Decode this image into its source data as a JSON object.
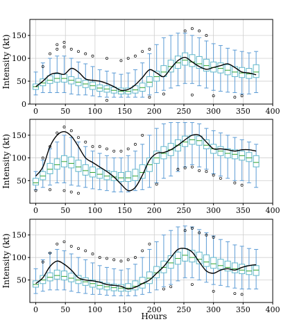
{
  "figure": {
    "xlabel": "Hours"
  },
  "colors": {
    "whisker": "#5b9bd5",
    "box_edge": "#5fb7c9",
    "median": "#2ca02c",
    "mean_line": "#000000",
    "grid": "#c8c8c8",
    "outlier": "#000000"
  },
  "chart_data": [
    {
      "type": "box",
      "ylabel": "Intensity (kt)",
      "xlim": [
        -10,
        400
      ],
      "ylim": [
        0,
        185
      ],
      "xticks": [
        0,
        50,
        100,
        150,
        200,
        250,
        300,
        350,
        400
      ],
      "yticks": [
        0,
        50,
        100,
        150
      ],
      "grid": true,
      "positions": [
        0,
        12,
        24,
        36,
        48,
        60,
        72,
        84,
        96,
        108,
        120,
        132,
        144,
        156,
        168,
        180,
        192,
        204,
        216,
        228,
        240,
        252,
        264,
        276,
        288,
        300,
        312,
        324,
        336,
        348,
        360,
        372
      ],
      "q1": [
        32,
        40,
        45,
        48,
        48,
        44,
        40,
        36,
        32,
        28,
        26,
        24,
        22,
        22,
        24,
        28,
        38,
        50,
        60,
        70,
        78,
        85,
        82,
        78,
        72,
        70,
        68,
        64,
        60,
        58,
        56,
        58
      ],
      "median": [
        38,
        46,
        52,
        56,
        56,
        52,
        48,
        44,
        40,
        35,
        33,
        30,
        28,
        28,
        31,
        36,
        48,
        60,
        70,
        82,
        90,
        96,
        92,
        88,
        84,
        80,
        78,
        74,
        70,
        68,
        66,
        70
      ],
      "q3": [
        44,
        55,
        62,
        66,
        65,
        60,
        56,
        52,
        48,
        42,
        40,
        37,
        35,
        35,
        40,
        46,
        60,
        72,
        84,
        96,
        105,
        112,
        108,
        104,
        98,
        92,
        90,
        86,
        82,
        80,
        78,
        86
      ],
      "whisker_low": [
        20,
        25,
        25,
        25,
        25,
        22,
        20,
        20,
        18,
        16,
        15,
        15,
        15,
        15,
        15,
        15,
        20,
        25,
        30,
        35,
        40,
        45,
        45,
        40,
        35,
        30,
        28,
        26,
        25,
        22,
        22,
        25
      ],
      "whisker_high": [
        70,
        90,
        100,
        105,
        105,
        100,
        92,
        88,
        82,
        75,
        72,
        68,
        65,
        68,
        75,
        90,
        110,
        130,
        145,
        150,
        155,
        155,
        150,
        145,
        138,
        132,
        128,
        122,
        118,
        115,
        112,
        115
      ],
      "outliers": [
        [
          12,
          82
        ],
        [
          24,
          110
        ],
        [
          36,
          120
        ],
        [
          36,
          130
        ],
        [
          48,
          125
        ],
        [
          48,
          135
        ],
        [
          60,
          120
        ],
        [
          72,
          115
        ],
        [
          84,
          110
        ],
        [
          96,
          105
        ],
        [
          120,
          100
        ],
        [
          144,
          95
        ],
        [
          156,
          100
        ],
        [
          168,
          105
        ],
        [
          180,
          115
        ],
        [
          192,
          120
        ],
        [
          252,
          160
        ],
        [
          264,
          165
        ],
        [
          276,
          160
        ],
        [
          288,
          150
        ],
        [
          192,
          15
        ],
        [
          216,
          22
        ],
        [
          264,
          20
        ],
        [
          300,
          18
        ],
        [
          336,
          15
        ],
        [
          348,
          18
        ],
        [
          120,
          8
        ]
      ],
      "mean_line": {
        "x": [
          0,
          12,
          24,
          36,
          48,
          60,
          72,
          84,
          96,
          108,
          120,
          132,
          144,
          156,
          168,
          180,
          192,
          204,
          216,
          228,
          240,
          252,
          264,
          276,
          288,
          300,
          312,
          324,
          336,
          348,
          360,
          372
        ],
        "y": [
          38,
          50,
          64,
          68,
          65,
          78,
          70,
          55,
          52,
          50,
          45,
          38,
          30,
          32,
          42,
          58,
          75,
          68,
          60,
          78,
          95,
          102,
          92,
          82,
          76,
          80,
          84,
          88,
          80,
          70,
          68,
          64
        ]
      }
    },
    {
      "type": "box",
      "ylabel": "Intensity (kt)",
      "xlim": [
        -10,
        400
      ],
      "ylim": [
        0,
        185
      ],
      "xticks": [
        0,
        50,
        100,
        150,
        200,
        250,
        300,
        350,
        400
      ],
      "yticks": [
        50,
        100,
        150
      ],
      "grid": true,
      "positions": [
        0,
        12,
        24,
        36,
        48,
        60,
        72,
        84,
        96,
        108,
        120,
        132,
        144,
        156,
        168,
        180,
        192,
        204,
        216,
        228,
        240,
        252,
        264,
        276,
        288,
        300,
        312,
        324,
        336,
        348,
        360,
        372
      ],
      "q1": [
        40,
        52,
        65,
        75,
        80,
        78,
        70,
        62,
        58,
        55,
        52,
        50,
        48,
        48,
        50,
        55,
        70,
        88,
        98,
        105,
        115,
        125,
        130,
        128,
        120,
        110,
        105,
        100,
        98,
        95,
        92,
        80
      ],
      "median": [
        45,
        60,
        75,
        85,
        92,
        88,
        80,
        72,
        68,
        64,
        60,
        58,
        56,
        56,
        60,
        68,
        85,
        100,
        110,
        118,
        128,
        135,
        140,
        138,
        128,
        120,
        115,
        110,
        108,
        105,
        100,
        90
      ],
      "q3": [
        55,
        70,
        88,
        98,
        105,
        102,
        95,
        85,
        80,
        76,
        72,
        70,
        68,
        70,
        75,
        85,
        100,
        115,
        125,
        132,
        140,
        148,
        150,
        148,
        140,
        130,
        125,
        120,
        118,
        115,
        112,
        105
      ],
      "whisker_low": [
        30,
        35,
        40,
        45,
        45,
        40,
        38,
        35,
        32,
        30,
        28,
        25,
        25,
        25,
        28,
        30,
        35,
        45,
        55,
        60,
        70,
        80,
        85,
        80,
        75,
        65,
        60,
        55,
        50,
        50,
        45,
        35
      ],
      "whisker_high": [
        70,
        95,
        120,
        135,
        150,
        145,
        135,
        125,
        115,
        110,
        105,
        100,
        100,
        105,
        115,
        130,
        150,
        165,
        175,
        178,
        178,
        178,
        178,
        175,
        165,
        160,
        155,
        150,
        145,
        140,
        135,
        130
      ],
      "outliers": [
        [
          0,
          28
        ],
        [
          12,
          100
        ],
        [
          24,
          125
        ],
        [
          36,
          155
        ],
        [
          48,
          168
        ],
        [
          60,
          160
        ],
        [
          72,
          145
        ],
        [
          84,
          135
        ],
        [
          96,
          125
        ],
        [
          108,
          125
        ],
        [
          120,
          120
        ],
        [
          132,
          115
        ],
        [
          144,
          115
        ],
        [
          156,
          120
        ],
        [
          168,
          130
        ],
        [
          180,
          150
        ],
        [
          24,
          30
        ],
        [
          48,
          28
        ],
        [
          60,
          25
        ],
        [
          72,
          22
        ],
        [
          240,
          75
        ],
        [
          252,
          78
        ],
        [
          264,
          80
        ],
        [
          276,
          72
        ],
        [
          288,
          70
        ],
        [
          300,
          62
        ],
        [
          312,
          55
        ],
        [
          336,
          45
        ],
        [
          348,
          40
        ],
        [
          204,
          42
        ]
      ],
      "mean_line": {
        "x": [
          0,
          12,
          24,
          36,
          48,
          60,
          72,
          84,
          96,
          108,
          120,
          132,
          144,
          156,
          168,
          180,
          192,
          204,
          216,
          228,
          240,
          252,
          264,
          276,
          288,
          300,
          312,
          324,
          336,
          348,
          360,
          372
        ],
        "y": [
          60,
          80,
          125,
          150,
          158,
          148,
          125,
          100,
          90,
          80,
          70,
          58,
          42,
          28,
          35,
          62,
          95,
          110,
          112,
          118,
          128,
          140,
          150,
          150,
          135,
          120,
          120,
          118,
          115,
          118,
          118,
          115
        ]
      }
    },
    {
      "type": "box",
      "ylabel": "Intensity (kt)",
      "xlim": [
        -10,
        400
      ],
      "ylim": [
        0,
        185
      ],
      "xticks": [
        0,
        50,
        100,
        150,
        200,
        250,
        300,
        350,
        400
      ],
      "yticks": [
        50,
        100,
        150
      ],
      "grid": true,
      "positions": [
        0,
        12,
        24,
        36,
        48,
        60,
        72,
        84,
        96,
        108,
        120,
        132,
        144,
        156,
        168,
        180,
        192,
        204,
        216,
        228,
        240,
        252,
        264,
        276,
        288,
        300,
        312,
        324,
        336,
        348,
        360,
        372
      ],
      "q1": [
        34,
        42,
        48,
        52,
        50,
        46,
        42,
        38,
        34,
        30,
        28,
        26,
        25,
        25,
        28,
        32,
        42,
        55,
        66,
        76,
        85,
        92,
        90,
        86,
        80,
        76,
        74,
        70,
        66,
        64,
        62,
        60
      ],
      "median": [
        40,
        50,
        56,
        60,
        58,
        54,
        50,
        46,
        42,
        38,
        35,
        33,
        32,
        32,
        36,
        42,
        54,
        66,
        78,
        88,
        98,
        105,
        100,
        96,
        90,
        86,
        82,
        78,
        75,
        72,
        70,
        72
      ],
      "q3": [
        48,
        60,
        66,
        72,
        70,
        65,
        60,
        55,
        50,
        46,
        43,
        41,
        40,
        42,
        48,
        56,
        68,
        80,
        92,
        104,
        112,
        120,
        116,
        112,
        106,
        100,
        96,
        92,
        88,
        85,
        82,
        82
      ],
      "whisker_low": [
        20,
        25,
        28,
        28,
        28,
        25,
        22,
        20,
        18,
        18,
        16,
        15,
        15,
        15,
        15,
        18,
        22,
        28,
        35,
        40,
        48,
        55,
        55,
        50,
        45,
        40,
        38,
        35,
        32,
        30,
        30,
        30
      ],
      "whisker_high": [
        75,
        95,
        110,
        118,
        115,
        108,
        100,
        95,
        88,
        82,
        78,
        75,
        72,
        75,
        85,
        100,
        118,
        135,
        150,
        160,
        168,
        170,
        168,
        162,
        155,
        148,
        140,
        135,
        128,
        125,
        120,
        118
      ],
      "outliers": [
        [
          12,
          90
        ],
        [
          24,
          110
        ],
        [
          36,
          130
        ],
        [
          48,
          135
        ],
        [
          60,
          125
        ],
        [
          72,
          120
        ],
        [
          84,
          115
        ],
        [
          96,
          108
        ],
        [
          108,
          100
        ],
        [
          120,
          98
        ],
        [
          132,
          95
        ],
        [
          144,
          92
        ],
        [
          156,
          95
        ],
        [
          168,
          100
        ],
        [
          180,
          115
        ],
        [
          192,
          130
        ],
        [
          252,
          160
        ],
        [
          264,
          165
        ],
        [
          276,
          155
        ],
        [
          288,
          150
        ],
        [
          300,
          145
        ],
        [
          216,
          30
        ],
        [
          228,
          35
        ],
        [
          264,
          40
        ],
        [
          300,
          25
        ],
        [
          336,
          20
        ],
        [
          348,
          18
        ]
      ],
      "mean_line": {
        "x": [
          0,
          12,
          24,
          36,
          48,
          60,
          72,
          84,
          96,
          108,
          120,
          132,
          144,
          156,
          168,
          180,
          192,
          204,
          216,
          228,
          240,
          252,
          264,
          276,
          288,
          300,
          312,
          324,
          336,
          348,
          360,
          372
        ],
        "y": [
          42,
          55,
          80,
          92,
          85,
          72,
          55,
          50,
          48,
          45,
          40,
          38,
          36,
          30,
          34,
          42,
          50,
          65,
          80,
          100,
          118,
          120,
          112,
          90,
          70,
          65,
          72,
          75,
          72,
          78,
          82,
          84
        ]
      }
    }
  ]
}
